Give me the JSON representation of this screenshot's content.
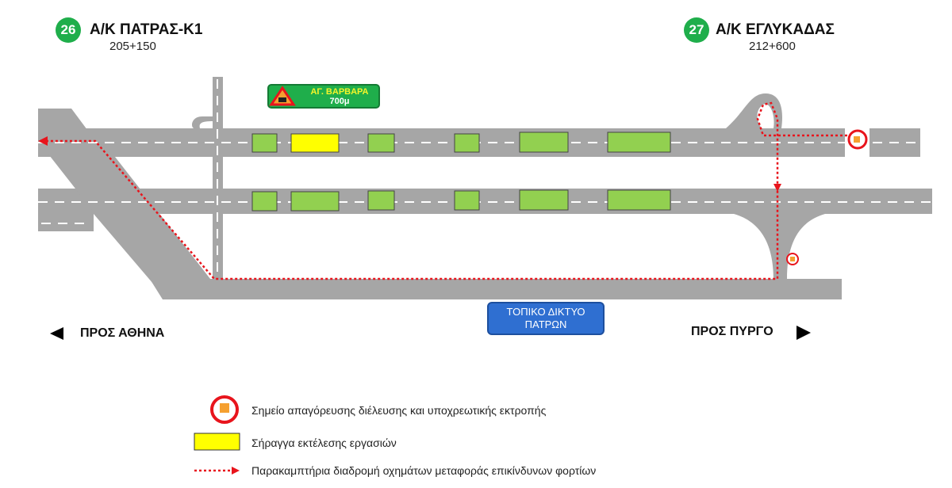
{
  "junctions": [
    {
      "number": "26",
      "name": "Α/Κ ΠΑΤΡΑΣ-Κ1",
      "chainage": "205+150"
    },
    {
      "number": "27",
      "name": "Α/Κ ΕΓΛΥΚΑΔΑΣ",
      "chainage": "212+600"
    }
  ],
  "tunnel_sign": {
    "name": "ΑΓ. ΒΑΡΒΑΡΑ",
    "distance": "700μ",
    "icon": "tunnel-warning-icon"
  },
  "local_network": {
    "line1": "ΤΟΠΙΚΟ ΔΙΚΤΥΟ",
    "line2": "ΠΑΤΡΩΝ"
  },
  "directions": {
    "left": "ΠΡΟΣ ΑΘΗΝΑ",
    "right": "ΠΡΟΣ ΠΥΡΓΟ"
  },
  "legend": [
    {
      "icon": "no-hazmat-truck-icon",
      "label": "Σημείο απαγόρευσης διέλευσης και υποχρεωτικής εκτροπής"
    },
    {
      "icon": "yellow-rectangle",
      "label": "Σήραγγα εκτέλεσης εργασιών"
    },
    {
      "icon": "red-dotted-arrow",
      "label": "Παρακαμπτήρια διαδρομή οχημάτων μεταφοράς επικίνδυνων φορτίων"
    }
  ],
  "colors": {
    "road": "#a6a6a6",
    "tunnel": "#92d050",
    "tunnel_works": "#ffff00",
    "detour": "#e8141c",
    "junction_badge": "#1fae4b",
    "local_network": "#2f6fd1"
  }
}
